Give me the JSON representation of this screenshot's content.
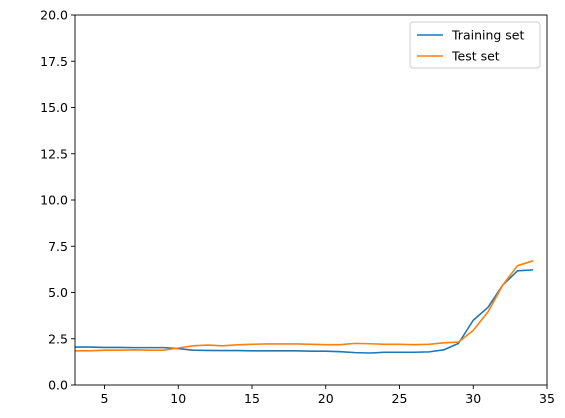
{
  "chart_data": {
    "type": "line",
    "title": "",
    "xlabel": "",
    "ylabel": "",
    "xlim": [
      3,
      35
    ],
    "ylim": [
      0,
      20
    ],
    "xticks": [
      5,
      10,
      15,
      20,
      25,
      30,
      35
    ],
    "yticks": [
      0.0,
      2.5,
      5.0,
      7.5,
      10.0,
      12.5,
      15.0,
      17.5,
      20.0
    ],
    "xtick_labels": [
      "5",
      "10",
      "15",
      "20",
      "25",
      "30",
      "35"
    ],
    "ytick_labels": [
      "0.0",
      "2.5",
      "5.0",
      "7.5",
      "10.0",
      "12.5",
      "15.0",
      "17.5",
      "20.0"
    ],
    "grid": false,
    "legend_position": "top-right",
    "series": [
      {
        "name": "Training set",
        "color": "#1f77b4",
        "x": [
          3,
          4,
          5,
          6,
          7,
          8,
          9,
          10,
          11,
          12,
          13,
          14,
          15,
          16,
          17,
          18,
          19,
          20,
          21,
          22,
          23,
          24,
          25,
          26,
          27,
          28,
          29,
          30,
          31,
          32,
          33,
          34
        ],
        "values": [
          2.05,
          2.05,
          2.03,
          2.03,
          2.02,
          2.02,
          2.02,
          1.97,
          1.88,
          1.87,
          1.86,
          1.86,
          1.85,
          1.85,
          1.85,
          1.85,
          1.83,
          1.83,
          1.8,
          1.75,
          1.73,
          1.77,
          1.77,
          1.77,
          1.79,
          1.9,
          2.25,
          3.5,
          4.2,
          5.4,
          6.17,
          6.22
        ]
      },
      {
        "name": "Test set",
        "color": "#ff7f0e",
        "x": [
          3,
          4,
          5,
          6,
          7,
          8,
          9,
          10,
          11,
          12,
          13,
          14,
          15,
          16,
          17,
          18,
          19,
          20,
          21,
          22,
          23,
          24,
          25,
          26,
          27,
          28,
          29,
          30,
          31,
          32,
          33,
          34
        ],
        "values": [
          1.85,
          1.85,
          1.88,
          1.88,
          1.9,
          1.88,
          1.88,
          2.0,
          2.12,
          2.16,
          2.12,
          2.17,
          2.2,
          2.22,
          2.22,
          2.22,
          2.2,
          2.18,
          2.18,
          2.25,
          2.23,
          2.2,
          2.2,
          2.18,
          2.2,
          2.28,
          2.32,
          2.95,
          3.95,
          5.4,
          6.45,
          6.7
        ]
      }
    ]
  }
}
